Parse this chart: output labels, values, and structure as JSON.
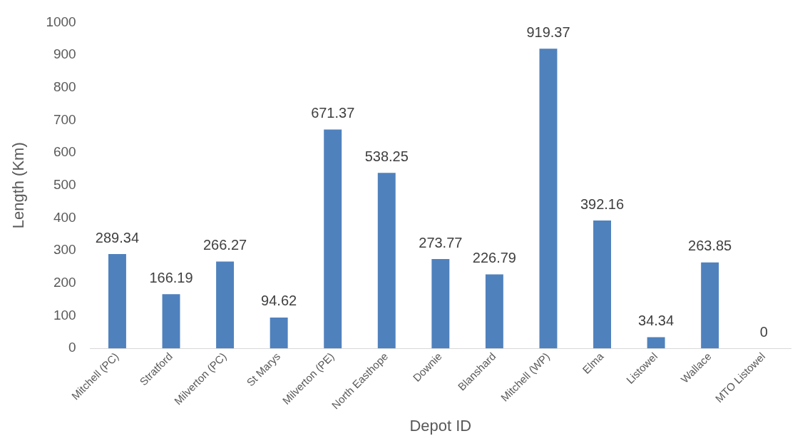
{
  "chart_data": {
    "type": "bar",
    "xlabel": "Depot ID",
    "ylabel": "Length (Km)",
    "categories": [
      "Mitchell (PC)",
      "Stratford",
      "Milverton (PC)",
      "St Marys",
      "Milverton (PE)",
      "North Easthope",
      "Downie",
      "Blanshard",
      "Mitchell (WP)",
      "Elma",
      "Listowel",
      "Wallace",
      "MTO Listowel"
    ],
    "values": [
      289.34,
      166.19,
      266.27,
      94.62,
      671.37,
      538.25,
      273.77,
      226.79,
      919.37,
      392.16,
      34.34,
      263.85,
      0
    ],
    "color": "#4f81bd",
    "ylim": [
      0,
      1000
    ],
    "yticks": [
      0,
      100,
      200,
      300,
      400,
      500,
      600,
      700,
      800,
      900,
      1000
    ],
    "grid": false,
    "legend": false,
    "data_labels": true
  }
}
